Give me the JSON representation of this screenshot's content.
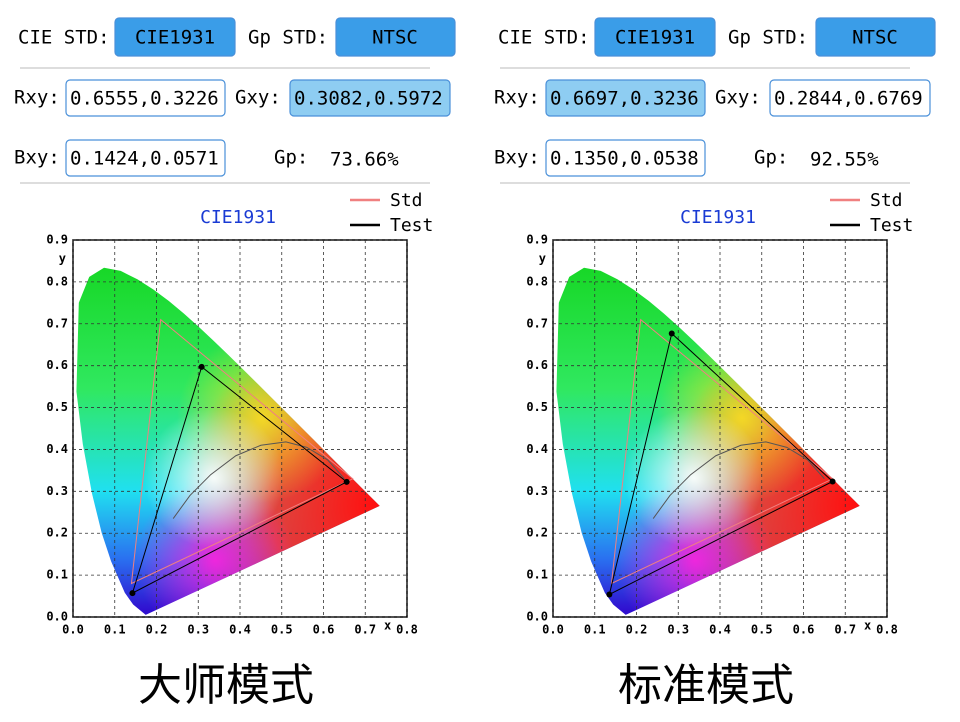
{
  "chart_data": [
    {
      "type": "cie",
      "std_label": "CIE STD:",
      "std": "CIE1931",
      "gp_std_label": "Gp STD:",
      "gp_std": "NTSC",
      "rxy_label": "Rxy:",
      "rxy": "0.6555,0.3226",
      "gxy_label": "Gxy:",
      "gxy": "0.3082,0.5972",
      "bxy_label": "Bxy:",
      "bxy": "0.1424,0.0571",
      "highlight": "gxy",
      "gp_label": "Gp:",
      "gp": "73.66%",
      "title": "CIE1931",
      "xlabel": "x",
      "ylabel": "y",
      "xlim": [
        0,
        0.8
      ],
      "ylim": [
        0,
        0.9
      ],
      "xticks": [
        {
          "value": 0,
          "label": "0.0"
        },
        0.1,
        0.2,
        0.3,
        0.4,
        0.5,
        0.6,
        0.7,
        0.8
      ],
      "yticks": [
        {
          "value": 0,
          "label": "0.0"
        },
        0.1,
        0.2,
        0.3,
        0.4,
        0.5,
        0.6,
        0.7,
        0.8,
        0.9
      ],
      "grid": true,
      "series": [
        {
          "name": "Std",
          "color": "#f08080",
          "x": [
            0.67,
            0.21,
            0.14
          ],
          "values": [
            0.33,
            0.71,
            0.08
          ]
        },
        {
          "name": "Test",
          "color": "#000000",
          "x": [
            0.6555,
            0.3082,
            0.1424
          ],
          "values": [
            0.3226,
            0.5972,
            0.0571
          ]
        }
      ],
      "caption": "大师模式"
    },
    {
      "type": "cie",
      "std_label": "CIE STD:",
      "std": "CIE1931",
      "gp_std_label": "Gp STD:",
      "gp_std": "NTSC",
      "rxy_label": "Rxy:",
      "rxy": "0.6697,0.3236",
      "gxy_label": "Gxy:",
      "gxy": "0.2844,0.6769",
      "bxy_label": "Bxy:",
      "bxy": "0.1350,0.0538",
      "highlight": "rxy",
      "gp_label": "Gp:",
      "gp": "92.55%",
      "title": "CIE1931",
      "xlabel": "x",
      "ylabel": "y",
      "xlim": [
        0,
        0.8
      ],
      "ylim": [
        0,
        0.9
      ],
      "xticks": [
        {
          "value": 0,
          "label": "0.0"
        },
        0.1,
        0.2,
        0.3,
        0.4,
        0.5,
        0.6,
        0.7,
        0.8
      ],
      "yticks": [
        {
          "value": 0,
          "label": "0.0"
        },
        0.1,
        0.2,
        0.3,
        0.4,
        0.5,
        0.6,
        0.7,
        0.8,
        0.9
      ],
      "grid": true,
      "series": [
        {
          "name": "Std",
          "color": "#f08080",
          "x": [
            0.67,
            0.21,
            0.14
          ],
          "values": [
            0.33,
            0.71,
            0.08
          ]
        },
        {
          "name": "Test",
          "color": "#000000",
          "x": [
            0.6697,
            0.2844,
            0.135
          ],
          "values": [
            0.3236,
            0.6769,
            0.0538
          ]
        }
      ],
      "caption": "标准模式"
    }
  ]
}
